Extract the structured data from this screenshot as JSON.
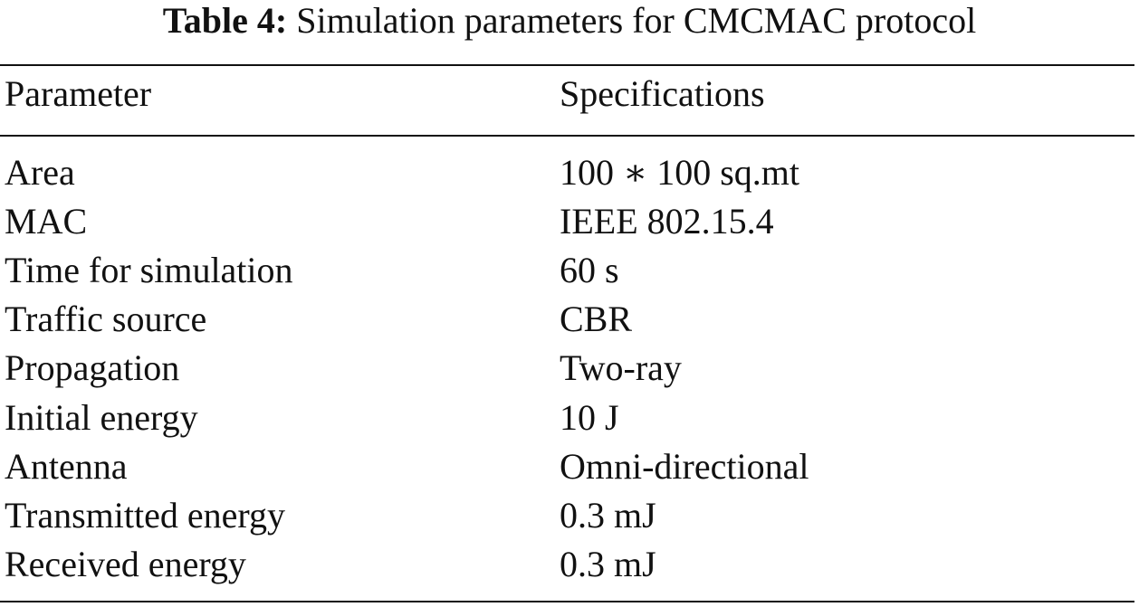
{
  "caption": {
    "label": "Table 4:",
    "text": "Simulation parameters for CMCMAC protocol"
  },
  "table": {
    "headers": {
      "parameter": "Parameter",
      "specifications": "Specifications"
    },
    "rows": [
      {
        "parameter": "Area",
        "specification": "100 ∗ 100 sq.mt"
      },
      {
        "parameter": "MAC",
        "specification": "IEEE 802.15.4"
      },
      {
        "parameter": "Time for simulation",
        "specification": "60 s"
      },
      {
        "parameter": "Traffic source",
        "specification": "CBR"
      },
      {
        "parameter": "Propagation",
        "specification": "Two-ray"
      },
      {
        "parameter": "Initial energy",
        "specification": "10 J"
      },
      {
        "parameter": "Antenna",
        "specification": "Omni-directional"
      },
      {
        "parameter": "Transmitted energy",
        "specification": "0.3 mJ"
      },
      {
        "parameter": "Received energy",
        "specification": "0.3 mJ"
      }
    ]
  }
}
